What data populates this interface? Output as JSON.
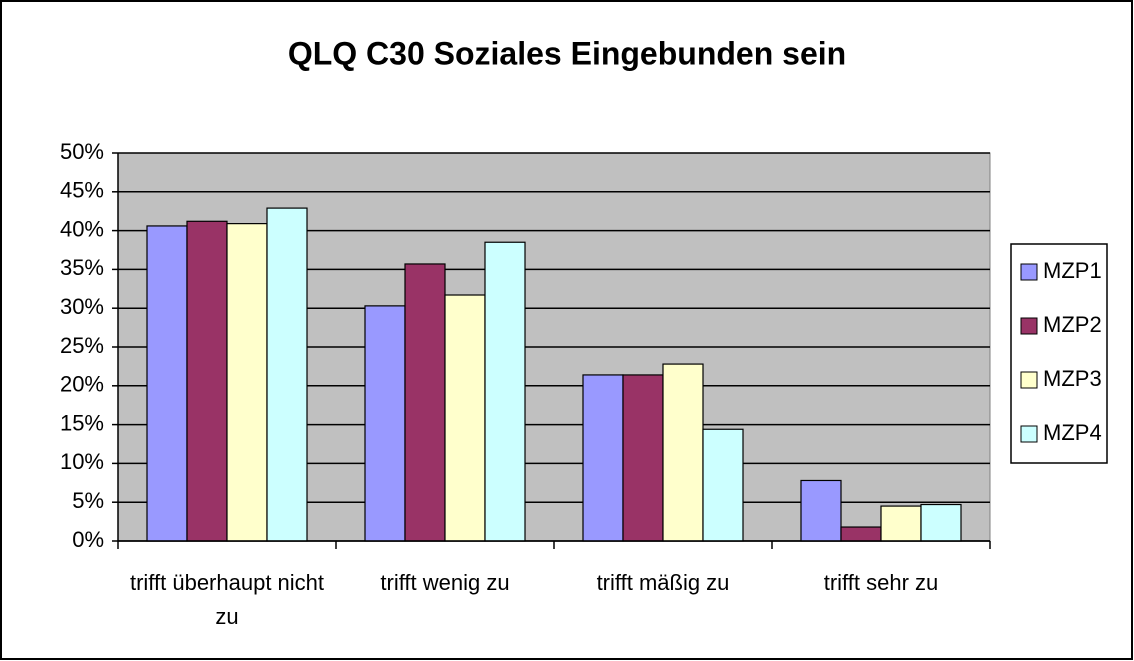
{
  "chart_data": {
    "type": "bar",
    "title": "QLQ C30 Soziales Eingebunden sein",
    "categories": [
      "trifft überhaupt nicht zu",
      "trifft wenig zu",
      "trifft mäßig zu",
      "trifft sehr zu"
    ],
    "series": [
      {
        "name": "MZP1",
        "color": "#9999ff",
        "values": [
          40.6,
          30.3,
          21.4,
          7.8
        ]
      },
      {
        "name": "MZP2",
        "color": "#993366",
        "values": [
          41.2,
          35.7,
          21.4,
          1.8
        ]
      },
      {
        "name": "MZP3",
        "color": "#ffffcc",
        "values": [
          40.9,
          31.7,
          22.8,
          4.5
        ]
      },
      {
        "name": "MZP4",
        "color": "#ccffff",
        "values": [
          42.9,
          38.5,
          14.4,
          4.7
        ]
      }
    ],
    "ylim": [
      0,
      50
    ],
    "yticks": [
      {
        "value": 0,
        "label": "0%"
      },
      {
        "value": 5,
        "label": "5%"
      },
      {
        "value": 10,
        "label": "10%"
      },
      {
        "value": 15,
        "label": "15%"
      },
      {
        "value": 20,
        "label": "20%"
      },
      {
        "value": 25,
        "label": "25%"
      },
      {
        "value": 30,
        "label": "30%"
      },
      {
        "value": 35,
        "label": "35%"
      },
      {
        "value": 40,
        "label": "40%"
      },
      {
        "value": 45,
        "label": "45%"
      },
      {
        "value": 50,
        "label": "50%"
      }
    ],
    "grid": true,
    "legend": "right"
  }
}
